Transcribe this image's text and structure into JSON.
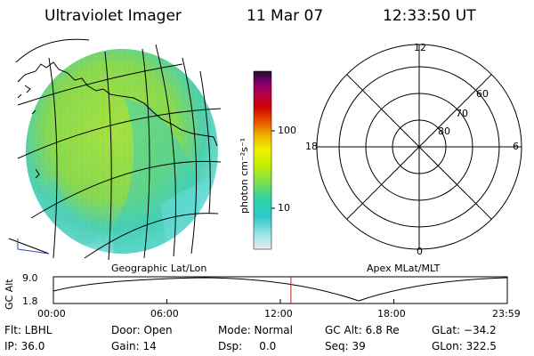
{
  "header": {
    "instrument": "Ultraviolet Imager",
    "date": "11 Mar 07",
    "time": "12:33:50 UT"
  },
  "panels": {
    "left_caption": "Geographic Lat/Lon",
    "right_caption": "Apex MLat/MLT"
  },
  "colorbar": {
    "unit_label": "photon cm⁻²s⁻¹",
    "ticks": [
      "100",
      "10"
    ],
    "stops": [
      "#e8e8e8",
      "#9ee6e6",
      "#2ec8c8",
      "#2ed2a8",
      "#7ee04a",
      "#c8f000",
      "#f0f000",
      "#f0b000",
      "#e85000",
      "#d00000",
      "#b00050",
      "#7a0070",
      "#301030"
    ]
  },
  "polar": {
    "mlt_labels": [
      "12",
      "18",
      "6",
      "0"
    ],
    "mlat_labels": [
      "60",
      "70",
      "80"
    ]
  },
  "timeline": {
    "axis_label": "GC Alt",
    "y_max": "9.0",
    "y_min": "1.8",
    "ticks": [
      "00:00",
      "06:00",
      "12:00",
      "18:00",
      "23:59"
    ],
    "current_time_hours": 12.56
  },
  "info": {
    "flt": "Flt: LBHL",
    "ip": "IP: 36.0",
    "door": "Door: Open",
    "gain": "Gain: 14",
    "mode": "Mode: Normal",
    "dsp": "Dsp:     0.0",
    "gcalt": "GC Alt: 6.8 Re",
    "seq": "Seq: 39",
    "glat": "GLat: −34.2",
    "glon": "GLon: 322.5"
  }
}
